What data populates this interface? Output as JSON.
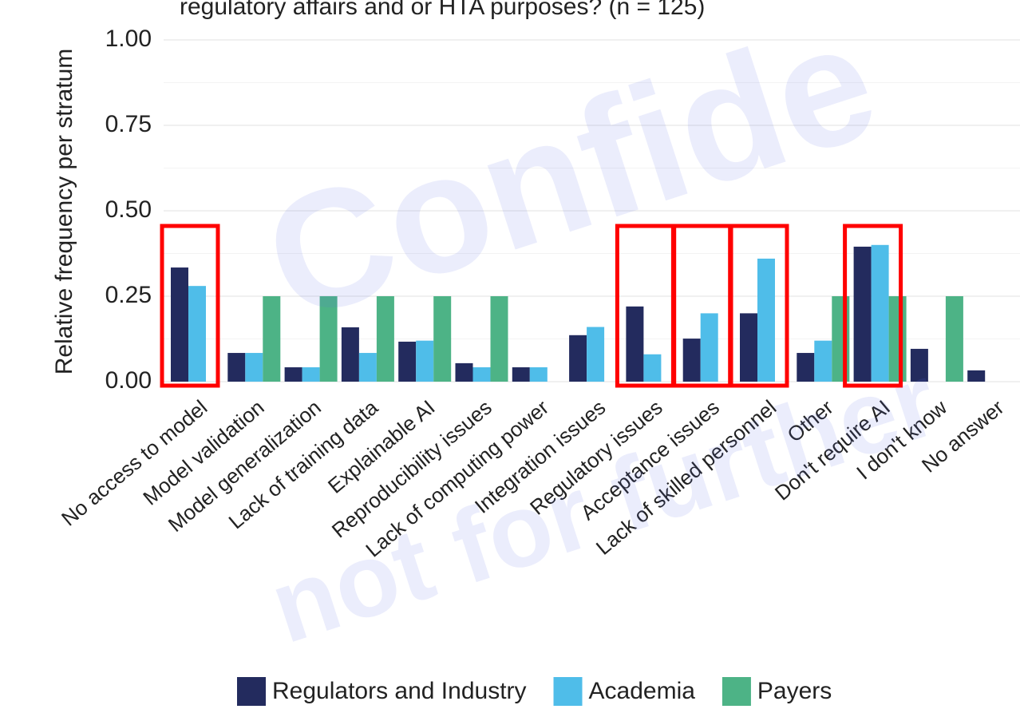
{
  "chart_data": {
    "type": "bar",
    "title": "regulatory affairs and or HTA purposes? (n = 125)",
    "y_label": "Relative frequency per stratum",
    "categories": [
      "No access to model",
      "Model validation",
      "Model generalization",
      "Lack of training data",
      "Explainable AI",
      "Reproducibility issues",
      "Lack of computing power",
      "Integration issues",
      "Regulatory issues",
      "Acceptance issues",
      "Lack of skilled personnel",
      "Other",
      "Don't require AI",
      "I don't know",
      "No answer"
    ],
    "series": [
      {
        "name": "Regulators and Industry",
        "color": "#232b5e",
        "values": [
          0.334,
          0.084,
          0.042,
          0.159,
          0.117,
          0.054,
          0.042,
          0.136,
          0.22,
          0.126,
          0.2,
          0.084,
          0.395,
          0.096,
          0.033
        ]
      },
      {
        "name": "Academia",
        "color": "#4fbde9",
        "values": [
          0.28,
          0.084,
          0.042,
          0.084,
          0.12,
          0.042,
          0.042,
          0.16,
          0.08,
          0.2,
          0.36,
          0.12,
          0.4,
          0,
          0
        ]
      },
      {
        "name": "Payers",
        "color": "#4db386",
        "values": [
          0,
          0.25,
          0.25,
          0.25,
          0.25,
          0.25,
          0,
          0,
          0,
          0,
          0,
          0.25,
          0.25,
          0.25,
          0
        ]
      }
    ],
    "ylim": [
      0,
      1
    ],
    "yticks": [
      {
        "value": 0,
        "label": "0.00"
      },
      {
        "value": 0.25,
        "label": "0.25"
      },
      {
        "value": 0.5,
        "label": "0.50"
      },
      {
        "value": 0.75,
        "label": "0.75"
      },
      {
        "value": 1,
        "label": "1.00"
      }
    ],
    "grid": true,
    "legend": "bottom",
    "highlighted": [
      0,
      8,
      9,
      10,
      12
    ],
    "watermark": [
      "Confide",
      "not for further"
    ]
  }
}
